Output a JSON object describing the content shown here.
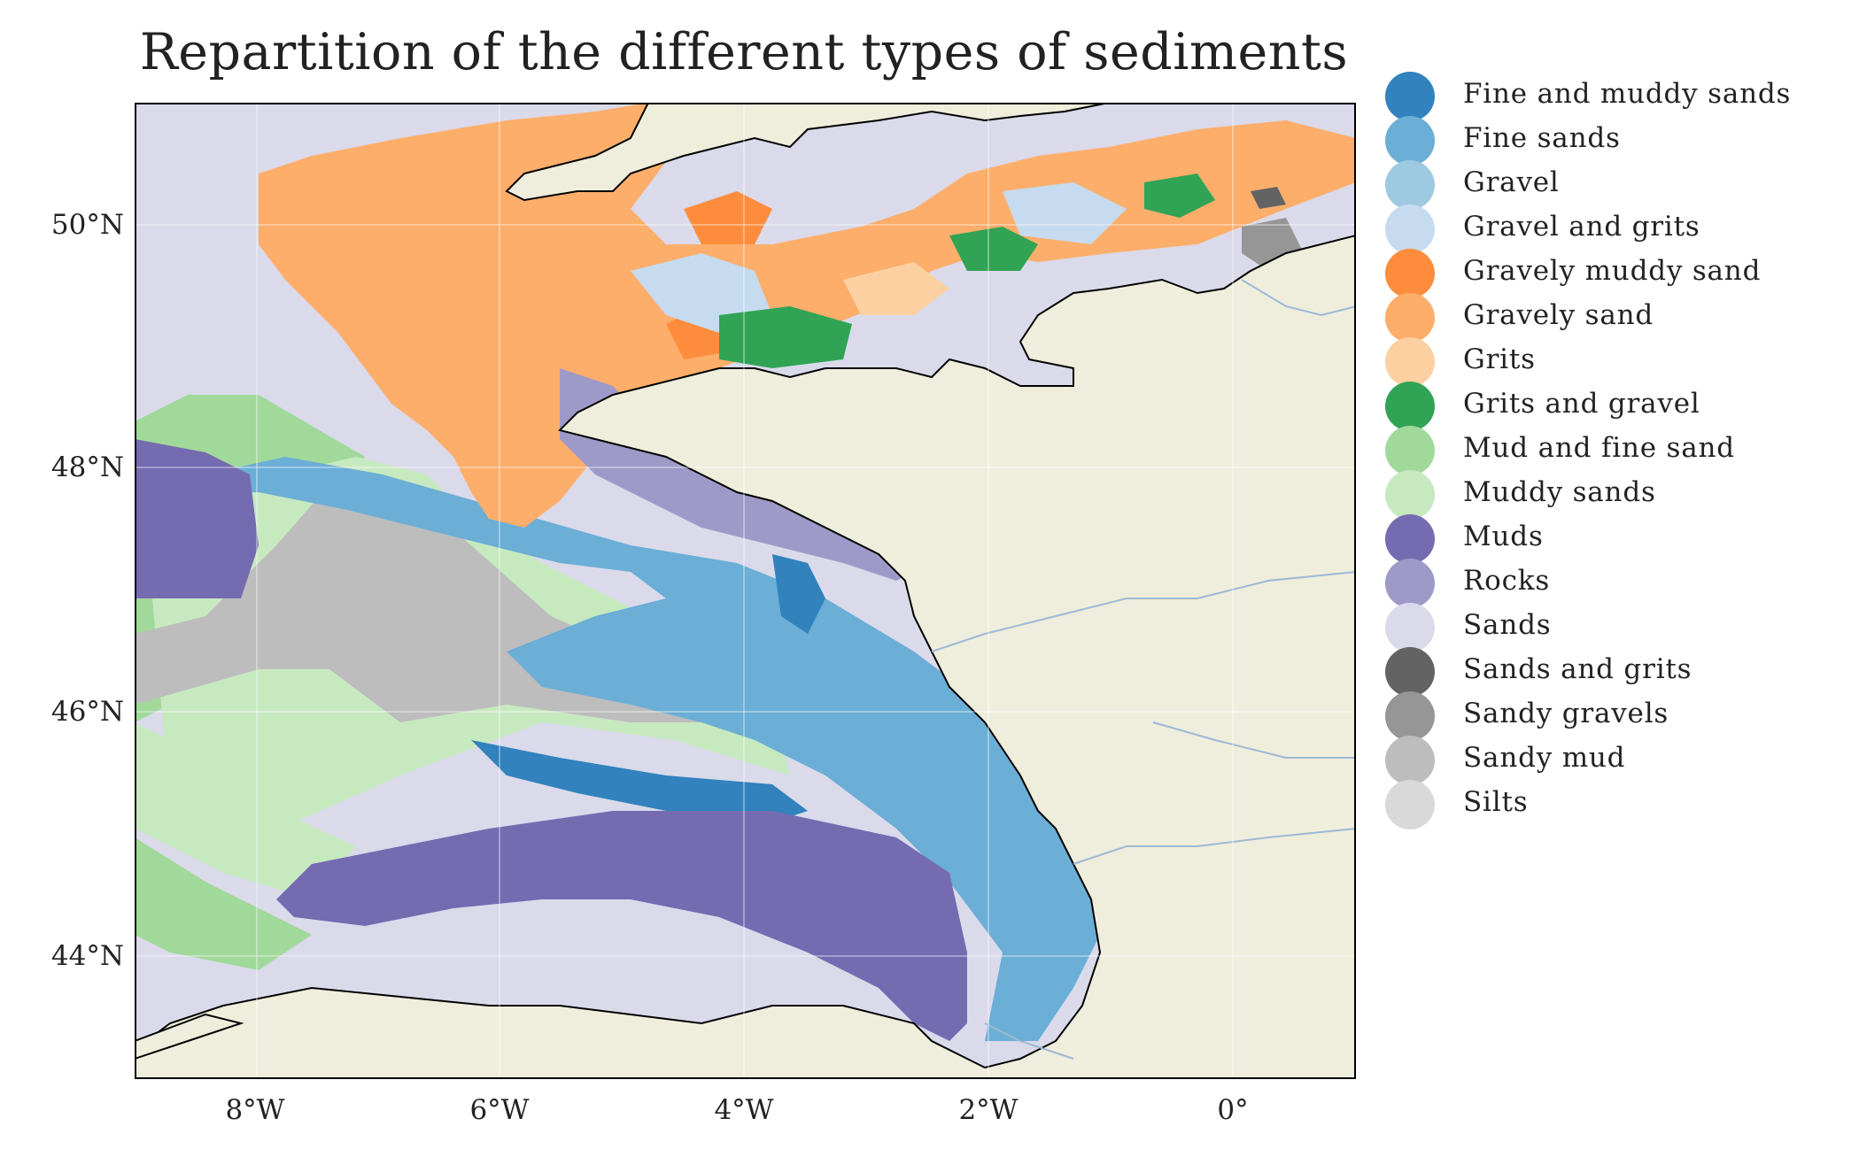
{
  "title": "Repartition of the different types of sediments",
  "map": {
    "lat_labels": [
      "50°N",
      "48°N",
      "46°N",
      "44°N"
    ],
    "lon_labels": [
      "8°W",
      "6°W",
      "4°W",
      "2°W",
      "0°"
    ],
    "land_color": "#efeedd",
    "coastline_color": "#000000",
    "river_color": "#9cb9d6"
  },
  "legend": {
    "items": [
      {
        "label": "Fine and muddy sands",
        "color": "#3182bd"
      },
      {
        "label": "Fine sands",
        "color": "#6baed6"
      },
      {
        "label": "Gravel",
        "color": "#9ecae1"
      },
      {
        "label": "Gravel and grits",
        "color": "#c6dbef"
      },
      {
        "label": "Gravely muddy sand",
        "color": "#fd8d3c"
      },
      {
        "label": "Gravely sand",
        "color": "#fdae6b"
      },
      {
        "label": "Grits",
        "color": "#fdd0a2"
      },
      {
        "label": "Grits and gravel",
        "color": "#31a354"
      },
      {
        "label": "Mud and fine sand",
        "color": "#a1d99b"
      },
      {
        "label": "Muddy sands",
        "color": "#c7e9c0"
      },
      {
        "label": "Muds",
        "color": "#756bb1"
      },
      {
        "label": "Rocks",
        "color": "#9e9ac8"
      },
      {
        "label": "Sands",
        "color": "#dadaeb"
      },
      {
        "label": "Sands and grits",
        "color": "#636363"
      },
      {
        "label": "Sandy gravels",
        "color": "#969696"
      },
      {
        "label": "Sandy mud",
        "color": "#bdbdbd"
      },
      {
        "label": "Silts",
        "color": "#d9d9d9"
      }
    ]
  }
}
